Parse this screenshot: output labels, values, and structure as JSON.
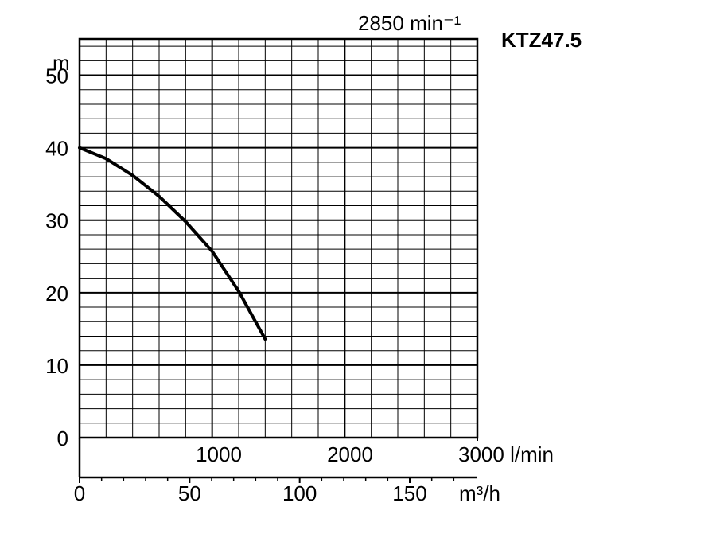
{
  "chart_data": {
    "type": "line",
    "title": "KTZ47.5",
    "subtitle": "2850 min⁻¹",
    "ylabel": "m",
    "ylim": [
      0,
      55
    ],
    "xlim_lpm": [
      0,
      3000
    ],
    "xlim_m3h": [
      0,
      180
    ],
    "yticks": [
      "0",
      "10",
      "20",
      "30",
      "40",
      "50"
    ],
    "x_lpm_ticks": [
      "1000",
      "2000",
      "3000 l/min"
    ],
    "x_m3h_ticks": [
      "0",
      "50",
      "100",
      "150"
    ],
    "x_m3h_unit": "m³/h",
    "grid": true,
    "series": [
      {
        "x_lpm": [
          0,
          200,
          400,
          600,
          800,
          1000,
          1200,
          1400
        ],
        "y": [
          40,
          38.5,
          36.2,
          33.3,
          29.8,
          25.7,
          20.2,
          13.6
        ]
      }
    ]
  }
}
